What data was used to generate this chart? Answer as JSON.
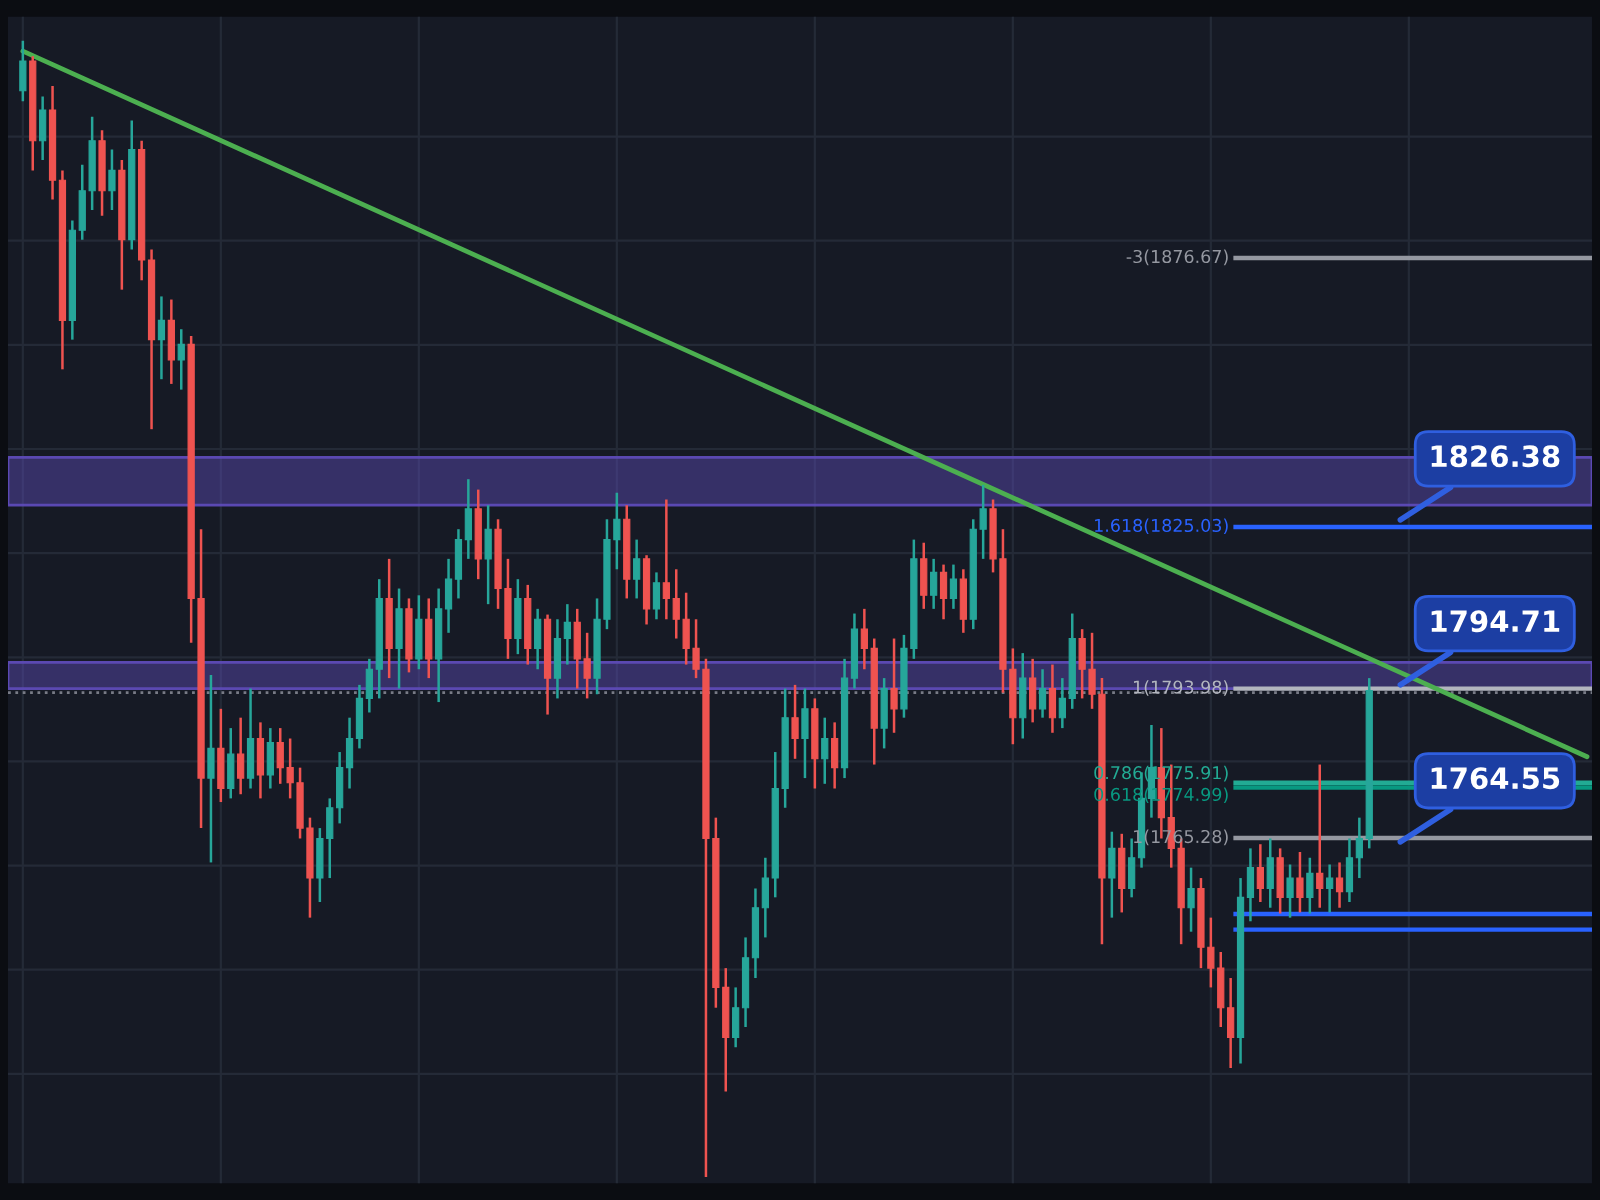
{
  "chart_data": {
    "type": "candlestick",
    "grid": true,
    "tick_labels": false,
    "ylim": [
      1699,
      1923
    ],
    "yticks": [
      {
        "value": 1720,
        "label": null
      },
      {
        "value": 1740,
        "label": null
      },
      {
        "value": 1760,
        "label": null
      },
      {
        "value": 1780,
        "label": null
      },
      {
        "value": 1800,
        "label": null
      },
      {
        "value": 1820,
        "label": null
      },
      {
        "value": 1840,
        "label": null
      },
      {
        "value": 1860,
        "label": null
      },
      {
        "value": 1880,
        "label": null
      },
      {
        "value": 1900,
        "label": null
      }
    ],
    "categories": [
      null,
      null,
      null,
      null,
      null,
      null,
      null,
      null,
      null,
      null,
      null,
      null,
      null,
      null,
      null,
      null,
      null,
      null,
      null,
      null,
      null,
      null,
      null,
      null,
      null,
      null,
      null,
      null,
      null,
      null,
      null,
      null,
      null,
      null,
      null,
      null,
      null,
      null,
      null,
      null,
      null,
      null,
      null,
      null,
      null,
      null,
      null,
      null,
      null,
      null,
      null,
      null,
      null,
      null,
      null,
      null,
      null,
      null,
      null,
      null,
      null,
      null,
      null,
      null,
      null,
      null,
      null,
      null,
      null,
      null,
      null,
      null,
      null,
      null,
      null,
      null,
      null,
      null,
      null,
      null,
      null,
      null,
      null,
      null,
      null,
      null,
      null,
      null,
      null,
      null,
      null,
      null,
      null,
      null,
      null,
      null,
      null,
      null,
      null,
      null,
      null,
      null,
      null,
      null,
      null,
      null,
      null,
      null,
      null,
      null,
      null,
      null,
      null,
      null,
      null,
      null,
      null,
      null,
      null,
      null,
      null,
      null,
      null,
      null,
      null,
      null,
      null,
      null,
      null,
      null,
      null,
      null,
      null,
      null,
      null,
      null,
      null,
      null,
      null,
      null,
      null,
      null,
      null,
      null,
      null,
      null,
      null,
      null,
      null,
      null,
      null,
      null,
      null,
      null,
      null,
      null,
      null,
      null,
      null
    ],
    "series": [
      {
        "ohlc": [
          [
            1908.8,
            1918.4,
            1906.8,
            1914.5
          ],
          [
            1914.5,
            1915.4,
            1893.5,
            1899.2
          ],
          [
            1899.2,
            1907.7,
            1895.5,
            1905.1
          ],
          [
            1905.1,
            1909.7,
            1887.9,
            1891.6
          ],
          [
            1891.6,
            1893.5,
            1855.3,
            1864.7
          ],
          [
            1864.7,
            1883.9,
            1861.0,
            1882.0
          ],
          [
            1882.0,
            1894.6,
            1880.2,
            1889.6
          ],
          [
            1889.6,
            1903.8,
            1885.9,
            1899.2
          ],
          [
            1899.2,
            1901.2,
            1884.8,
            1889.6
          ],
          [
            1889.6,
            1897.5,
            1885.9,
            1893.5
          ],
          [
            1893.5,
            1895.5,
            1870.6,
            1880.2
          ],
          [
            1880.2,
            1903.1,
            1878.3,
            1897.5
          ],
          [
            1897.5,
            1899.2,
            1872.4,
            1876.3
          ],
          [
            1876.3,
            1878.3,
            1843.8,
            1861.0
          ],
          [
            1861.0,
            1869.3,
            1853.4,
            1864.7
          ],
          [
            1864.7,
            1868.7,
            1852.5,
            1857.1
          ],
          [
            1857.1,
            1863.0,
            1851.4,
            1860.1
          ],
          [
            1860.1,
            1861.7,
            1802.8,
            1811.3
          ],
          [
            1811.3,
            1824.6,
            1767.2,
            1776.8
          ],
          [
            1776.8,
            1796.6,
            1760.6,
            1782.5
          ],
          [
            1782.5,
            1790.1,
            1772.2,
            1774.8
          ],
          [
            1774.8,
            1786.4,
            1772.9,
            1781.4
          ],
          [
            1781.4,
            1788.4,
            1773.7,
            1776.8
          ],
          [
            1776.8,
            1794.0,
            1774.8,
            1784.4
          ],
          [
            1784.4,
            1787.5,
            1772.9,
            1777.4
          ],
          [
            1777.4,
            1786.4,
            1774.8,
            1783.6
          ],
          [
            1783.6,
            1786.4,
            1775.7,
            1778.8
          ],
          [
            1778.8,
            1784.4,
            1772.9,
            1775.9
          ],
          [
            1775.9,
            1778.8,
            1765.2,
            1767.2
          ],
          [
            1767.2,
            1769.2,
            1750.0,
            1757.6
          ],
          [
            1757.6,
            1767.2,
            1753.0,
            1765.2
          ],
          [
            1765.2,
            1772.9,
            1757.6,
            1771.1
          ],
          [
            1771.1,
            1781.8,
            1768.1,
            1778.8
          ],
          [
            1778.8,
            1788.4,
            1774.8,
            1784.4
          ],
          [
            1784.4,
            1794.7,
            1782.5,
            1792.1
          ],
          [
            1792.1,
            1799.7,
            1789.4,
            1797.7
          ],
          [
            1797.7,
            1815.0,
            1792.1,
            1811.3
          ],
          [
            1811.3,
            1818.9,
            1796.0,
            1801.7
          ],
          [
            1801.7,
            1813.2,
            1794.0,
            1809.3
          ],
          [
            1809.3,
            1811.3,
            1797.1,
            1799.7
          ],
          [
            1799.7,
            1811.9,
            1797.7,
            1807.3
          ],
          [
            1807.3,
            1811.3,
            1796.0,
            1799.7
          ],
          [
            1799.7,
            1813.2,
            1791.4,
            1809.3
          ],
          [
            1809.3,
            1818.9,
            1804.7,
            1815.0
          ],
          [
            1815.0,
            1824.6,
            1811.3,
            1822.6
          ],
          [
            1822.6,
            1834.2,
            1818.9,
            1828.5
          ],
          [
            1828.5,
            1832.2,
            1815.0,
            1818.9
          ],
          [
            1818.9,
            1829.2,
            1810.2,
            1824.6
          ],
          [
            1824.6,
            1826.5,
            1809.3,
            1813.2
          ],
          [
            1813.2,
            1818.9,
            1799.7,
            1803.6
          ],
          [
            1803.6,
            1815.0,
            1800.6,
            1811.3
          ],
          [
            1811.3,
            1813.9,
            1798.6,
            1801.7
          ],
          [
            1801.7,
            1809.3,
            1797.7,
            1807.3
          ],
          [
            1807.3,
            1808.2,
            1789.0,
            1796.0
          ],
          [
            1796.0,
            1807.3,
            1792.1,
            1803.6
          ],
          [
            1803.6,
            1810.2,
            1798.6,
            1806.7
          ],
          [
            1806.7,
            1809.3,
            1794.0,
            1799.7
          ],
          [
            1799.7,
            1804.7,
            1792.1,
            1796.0
          ],
          [
            1796.0,
            1811.3,
            1792.9,
            1807.3
          ],
          [
            1807.3,
            1826.5,
            1805.4,
            1822.6
          ],
          [
            1822.6,
            1831.6,
            1816.9,
            1826.5
          ],
          [
            1826.5,
            1829.2,
            1811.3,
            1815.0
          ],
          [
            1815.0,
            1822.6,
            1811.3,
            1818.9
          ],
          [
            1818.9,
            1819.6,
            1806.3,
            1809.3
          ],
          [
            1809.3,
            1816.3,
            1807.3,
            1814.3
          ],
          [
            1814.3,
            1830.3,
            1807.3,
            1811.3
          ],
          [
            1811.3,
            1816.9,
            1803.6,
            1807.3
          ],
          [
            1807.3,
            1812.4,
            1798.6,
            1801.7
          ],
          [
            1801.7,
            1807.3,
            1796.0,
            1797.7
          ],
          [
            1797.7,
            1799.7,
            1700.2,
            1765.2
          ],
          [
            1765.2,
            1769.2,
            1732.7,
            1736.6
          ],
          [
            1736.6,
            1740.3,
            1716.6,
            1727.0
          ],
          [
            1727.0,
            1736.6,
            1725.1,
            1732.7
          ],
          [
            1732.7,
            1746.2,
            1729.0,
            1742.3
          ],
          [
            1742.3,
            1755.6,
            1738.4,
            1751.9
          ],
          [
            1751.9,
            1761.5,
            1746.2,
            1757.6
          ],
          [
            1757.6,
            1781.8,
            1753.9,
            1774.8
          ],
          [
            1774.8,
            1794.0,
            1771.1,
            1788.4
          ],
          [
            1788.4,
            1794.7,
            1780.5,
            1784.4
          ],
          [
            1784.4,
            1794.0,
            1776.8,
            1790.1
          ],
          [
            1790.1,
            1792.1,
            1774.8,
            1780.5
          ],
          [
            1780.5,
            1788.4,
            1775.7,
            1784.4
          ],
          [
            1784.4,
            1787.5,
            1774.8,
            1778.8
          ],
          [
            1778.8,
            1799.7,
            1776.8,
            1796.0
          ],
          [
            1796.0,
            1808.4,
            1794.0,
            1805.4
          ],
          [
            1805.4,
            1809.3,
            1797.7,
            1801.7
          ],
          [
            1801.7,
            1803.6,
            1779.4,
            1786.4
          ],
          [
            1786.4,
            1796.0,
            1782.5,
            1794.0
          ],
          [
            1794.0,
            1803.6,
            1785.5,
            1790.1
          ],
          [
            1790.1,
            1804.3,
            1788.4,
            1801.7
          ],
          [
            1801.7,
            1822.6,
            1799.7,
            1818.9
          ],
          [
            1818.9,
            1822.0,
            1809.3,
            1811.9
          ],
          [
            1811.9,
            1818.9,
            1809.3,
            1816.3
          ],
          [
            1816.3,
            1817.8,
            1807.3,
            1811.3
          ],
          [
            1811.3,
            1817.8,
            1809.3,
            1815.0
          ],
          [
            1815.0,
            1816.9,
            1804.7,
            1807.3
          ],
          [
            1807.3,
            1826.5,
            1805.4,
            1824.6
          ],
          [
            1824.6,
            1833.1,
            1818.9,
            1828.5
          ],
          [
            1828.5,
            1830.3,
            1816.3,
            1818.9
          ],
          [
            1818.9,
            1824.6,
            1793.2,
            1797.7
          ],
          [
            1797.7,
            1801.7,
            1783.3,
            1788.4
          ],
          [
            1788.4,
            1800.8,
            1784.4,
            1796.0
          ],
          [
            1796.0,
            1799.7,
            1787.5,
            1790.1
          ],
          [
            1790.1,
            1797.7,
            1788.4,
            1794.0
          ],
          [
            1794.0,
            1798.6,
            1785.5,
            1788.4
          ],
          [
            1788.4,
            1796.0,
            1786.4,
            1792.1
          ],
          [
            1792.1,
            1808.4,
            1790.1,
            1803.6
          ],
          [
            1803.6,
            1805.4,
            1792.1,
            1797.7
          ],
          [
            1797.7,
            1804.7,
            1790.1,
            1792.9
          ],
          [
            1792.9,
            1796.0,
            1744.9,
            1757.6
          ],
          [
            1757.6,
            1766.5,
            1750.0,
            1763.3
          ],
          [
            1763.3,
            1766.1,
            1751.0,
            1755.6
          ],
          [
            1755.6,
            1765.2,
            1753.9,
            1761.5
          ],
          [
            1761.5,
            1777.9,
            1759.6,
            1772.9
          ],
          [
            1772.9,
            1787.0,
            1769.2,
            1778.8
          ],
          [
            1778.8,
            1786.4,
            1765.2,
            1769.2
          ],
          [
            1769.2,
            1779.4,
            1759.6,
            1763.3
          ],
          [
            1763.3,
            1765.2,
            1744.9,
            1751.9
          ],
          [
            1751.9,
            1759.6,
            1747.3,
            1755.6
          ],
          [
            1755.6,
            1757.6,
            1740.3,
            1744.3
          ],
          [
            1744.3,
            1750.0,
            1736.6,
            1740.3
          ],
          [
            1740.3,
            1743.4,
            1729.0,
            1732.7
          ],
          [
            1732.7,
            1738.4,
            1721.1,
            1727.0
          ],
          [
            1727.0,
            1757.6,
            1722.0,
            1753.9
          ],
          [
            1753.9,
            1763.3,
            1749.3,
            1759.6
          ],
          [
            1759.6,
            1764.1,
            1753.0,
            1755.6
          ],
          [
            1755.6,
            1765.2,
            1751.9,
            1761.5
          ],
          [
            1761.5,
            1763.3,
            1750.8,
            1753.9
          ],
          [
            1753.9,
            1760.2,
            1750.0,
            1757.6
          ],
          [
            1757.6,
            1762.6,
            1751.0,
            1753.9
          ],
          [
            1753.9,
            1761.5,
            1750.8,
            1758.5
          ],
          [
            1758.5,
            1779.4,
            1751.9,
            1755.6
          ],
          [
            1755.6,
            1760.2,
            1751.0,
            1757.6
          ],
          [
            1757.6,
            1760.6,
            1751.9,
            1755.0
          ],
          [
            1755.0,
            1765.2,
            1753.0,
            1761.5
          ],
          [
            1761.5,
            1769.2,
            1757.6,
            1765.2
          ],
          [
            1765.2,
            1796.0,
            1763.3,
            1793.6
          ],
          null,
          null,
          null,
          null,
          null,
          null,
          null,
          null,
          null,
          null,
          null,
          null,
          null,
          null,
          null,
          null,
          null,
          null,
          null,
          null,
          null,
          null
        ],
        "colors": [
          "#26a69a",
          "#ef5350",
          "#26a69a",
          "#ef5350",
          "#ef5350",
          "#26a69a",
          "#26a69a",
          "#26a69a",
          "#ef5350",
          "#26a69a",
          "#ef5350",
          "#26a69a",
          "#ef5350",
          "#ef5350",
          "#26a69a",
          "#ef5350",
          "#26a69a",
          "#ef5350",
          "#ef5350",
          "#26a69a",
          "#ef5350",
          "#26a69a",
          "#ef5350",
          "#26a69a",
          "#ef5350",
          "#26a69a",
          "#ef5350",
          "#ef5350",
          "#ef5350",
          "#ef5350",
          "#26a69a",
          "#26a69a",
          "#26a69a",
          "#26a69a",
          "#26a69a",
          "#26a69a",
          "#26a69a",
          "#ef5350",
          "#26a69a",
          "#ef5350",
          "#26a69a",
          "#ef5350",
          "#26a69a",
          "#26a69a",
          "#26a69a",
          "#26a69a",
          "#ef5350",
          "#26a69a",
          "#ef5350",
          "#ef5350",
          "#26a69a",
          "#ef5350",
          "#26a69a",
          "#ef5350",
          "#26a69a",
          "#26a69a",
          "#ef5350",
          "#ef5350",
          "#26a69a",
          "#26a69a",
          "#26a69a",
          "#ef5350",
          "#26a69a",
          "#ef5350",
          "#26a69a",
          "#ef5350",
          "#ef5350",
          "#ef5350",
          "#ef5350",
          "#ef5350",
          "#ef5350",
          "#ef5350",
          "#26a69a",
          "#26a69a",
          "#26a69a",
          "#26a69a",
          "#26a69a",
          "#26a69a",
          "#ef5350",
          "#26a69a",
          "#ef5350",
          "#26a69a",
          "#ef5350",
          "#26a69a",
          "#26a69a",
          "#ef5350",
          "#ef5350",
          "#26a69a",
          "#ef5350",
          "#26a69a",
          "#26a69a",
          "#ef5350",
          "#26a69a",
          "#ef5350",
          "#26a69a",
          "#ef5350",
          "#26a69a",
          "#26a69a",
          "#ef5350",
          "#ef5350",
          "#ef5350",
          "#26a69a",
          "#ef5350",
          "#26a69a",
          "#ef5350",
          "#26a69a",
          "#26a69a",
          "#ef5350",
          "#ef5350",
          "#ef5350",
          "#26a69a",
          "#ef5350",
          "#26a69a",
          "#26a69a",
          "#26a69a",
          "#ef5350",
          "#ef5350",
          "#ef5350",
          "#26a69a",
          "#ef5350",
          "#ef5350",
          "#ef5350",
          "#ef5350",
          "#26a69a",
          "#26a69a",
          "#ef5350",
          "#26a69a",
          "#ef5350",
          "#26a69a",
          "#ef5350",
          "#26a69a",
          "#ef5350",
          "#26a69a",
          "#ef5350",
          "#26a69a",
          "#26a69a",
          "#26a69a",
          null,
          null,
          null,
          null,
          null,
          null,
          null,
          null,
          null,
          null,
          null,
          null,
          null,
          null,
          null,
          null,
          null,
          null,
          null,
          null,
          null,
          null
        ]
      },
      {
        "type": "line",
        "color": "#4caf50",
        "values": [
          1916.4,
          null,
          null,
          null,
          null,
          null,
          null,
          null,
          null,
          null,
          null,
          null,
          null,
          null,
          null,
          null,
          null,
          null,
          null,
          null,
          null,
          null,
          null,
          null,
          null,
          null,
          null,
          null,
          null,
          null,
          null,
          null,
          null,
          null,
          null,
          null,
          null,
          null,
          null,
          null,
          null,
          null,
          null,
          null,
          null,
          null,
          null,
          null,
          null,
          null,
          null,
          null,
          null,
          null,
          null,
          null,
          null,
          null,
          null,
          null,
          null,
          null,
          null,
          null,
          null,
          null,
          null,
          null,
          null,
          null,
          null,
          null,
          null,
          null,
          null,
          null,
          null,
          null,
          null,
          null,
          null,
          null,
          null,
          null,
          null,
          null,
          null,
          null,
          null,
          null,
          null,
          null,
          null,
          null,
          null,
          null,
          null,
          null,
          null,
          null,
          null,
          null,
          null,
          null,
          null,
          null,
          null,
          null,
          null,
          null,
          null,
          null,
          null,
          null,
          null,
          null,
          null,
          null,
          null,
          null,
          null,
          null,
          null,
          null,
          null,
          null,
          null,
          null,
          null,
          null,
          null,
          null,
          null,
          null,
          null,
          null,
          null,
          null,
          null,
          null,
          null,
          null,
          null,
          null,
          null,
          null,
          null,
          null,
          null,
          null,
          null,
          null,
          null,
          null,
          null,
          null,
          null,
          null,
          1780.9
        ]
      }
    ],
    "bands": [
      {
        "axis": "y",
        "from": 1829.2,
        "to": 1838.4,
        "color": "#5e4bb8"
      },
      {
        "axis": "y",
        "from": 1794.0,
        "to": 1799.0,
        "color": "#5e4bb8"
      }
    ],
    "ref_lines": [
      {
        "axis": "y",
        "value": 1876.67,
        "label": "-3(1876.67)",
        "color": "#9598a1"
      },
      {
        "axis": "y",
        "value": 1825.03,
        "label": "1.618(1825.03)",
        "color": "#2962ff"
      },
      {
        "axis": "y",
        "value": 1793.98,
        "label": "1(1793.98)",
        "color": "#b2b5be"
      },
      {
        "axis": "y",
        "value": 1793.2,
        "color": "#787b86",
        "line_style": "dotted"
      },
      {
        "axis": "y",
        "value": 1775.91,
        "label": "0.786(1775.91)",
        "color": "#22ab94"
      },
      {
        "axis": "y",
        "value": 1774.99,
        "label": "0.618(1774.99)",
        "color": "#089981"
      },
      {
        "axis": "y",
        "value": 1765.28,
        "label": "1(1765.28)",
        "color": "#9598a1"
      },
      {
        "axis": "y",
        "value": 1750.7,
        "color": "#2962ff"
      },
      {
        "axis": "y",
        "value": 1747.7,
        "color": "#2962ff"
      }
    ],
    "annotations": [
      {
        "text": "1826.38",
        "y": 1826.38
      },
      {
        "text": "1794.71",
        "y": 1794.71
      },
      {
        "text": "1764.55",
        "y": 1764.55
      }
    ]
  }
}
